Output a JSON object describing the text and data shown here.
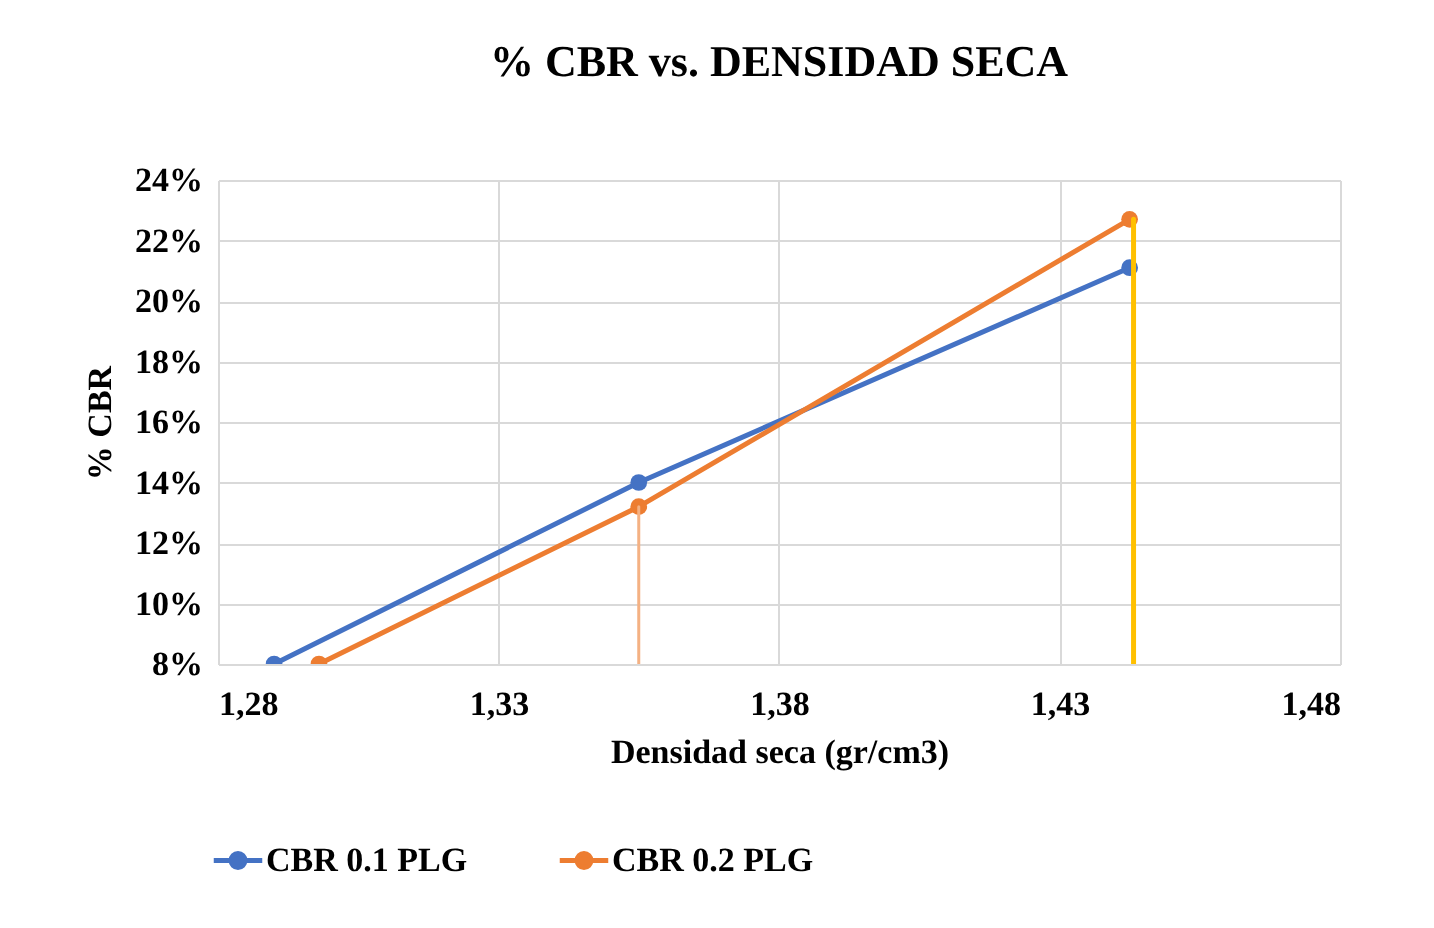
{
  "chart_data": {
    "type": "line",
    "title": "% CBR vs. DENSIDAD SECA",
    "xlabel": "Densidad seca (gr/cm3)",
    "ylabel": "% CBR",
    "xlim": [
      1.28,
      1.48
    ],
    "xticks": [
      {
        "value": 1.28,
        "label": "1,28"
      },
      {
        "value": 1.33,
        "label": "1,33"
      },
      {
        "value": 1.38,
        "label": "1,38"
      },
      {
        "value": 1.43,
        "label": "1,43"
      },
      {
        "value": 1.48,
        "label": "1,48"
      }
    ],
    "ylim": [
      8,
      24
    ],
    "yticks": [
      {
        "value": 8,
        "label": "8%"
      },
      {
        "value": 10,
        "label": "10%"
      },
      {
        "value": 12,
        "label": "12%"
      },
      {
        "value": 14,
        "label": "14%"
      },
      {
        "value": 16,
        "label": "16%"
      },
      {
        "value": 18,
        "label": "18%"
      },
      {
        "value": 20,
        "label": "20%"
      },
      {
        "value": 22,
        "label": "22%"
      },
      {
        "value": 24,
        "label": "24%"
      }
    ],
    "grid": true,
    "legend": "bottom",
    "marker": "circle",
    "series": [
      {
        "name": "CBR 0.1 PLG",
        "color": "#4472c4",
        "x": [
          1.29,
          1.355,
          1.4425
        ],
        "values": [
          8,
          14,
          21.1
        ]
      },
      {
        "name": "CBR 0.2 PLG",
        "color": "#ed7d31",
        "x": [
          1.298,
          1.355,
          1.4425
        ],
        "values": [
          8,
          13.2,
          22.7
        ]
      },
      {
        "color": "#f4b183",
        "marker": "none",
        "x": [
          1.355,
          1.355
        ],
        "values": [
          8,
          13.2
        ]
      },
      {
        "color": "#ffc000",
        "marker": "none",
        "x": [
          1.4432,
          1.4432
        ],
        "values": [
          8,
          22.7
        ]
      }
    ]
  }
}
